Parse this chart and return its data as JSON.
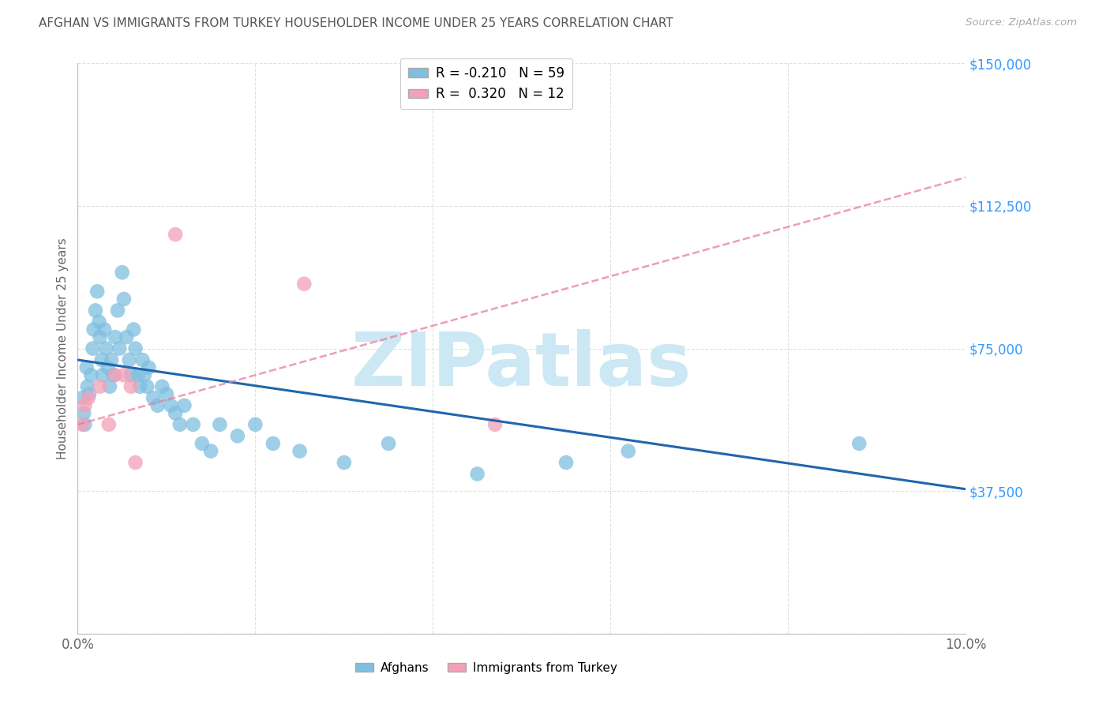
{
  "title": "AFGHAN VS IMMIGRANTS FROM TURKEY HOUSEHOLDER INCOME UNDER 25 YEARS CORRELATION CHART",
  "source": "Source: ZipAtlas.com",
  "ylabel": "Householder Income Under 25 years",
  "xlim": [
    0.0,
    10.0
  ],
  "ylim": [
    0,
    150000
  ],
  "yticks": [
    0,
    37500,
    75000,
    112500,
    150000
  ],
  "ytick_labels": [
    "",
    "$37,500",
    "$75,000",
    "$112,500",
    "$150,000"
  ],
  "xtick_labels": [
    "0.0%",
    "",
    "",
    "",
    "",
    "10.0%"
  ],
  "afghan_R": -0.21,
  "afghan_N": 59,
  "turkey_R": 0.32,
  "turkey_N": 12,
  "afghan_color": "#7fbfe0",
  "turkey_color": "#f4a0b8",
  "afghan_line_color": "#2166ac",
  "turkey_line_color": "#e87ca0",
  "title_color": "#555555",
  "ytick_color": "#3399ff",
  "xtick_color": "#666666",
  "watermark_color": "#cce8f4",
  "background_color": "#ffffff",
  "grid_color": "#dddddd",
  "afghans_x": [
    0.05,
    0.07,
    0.08,
    0.1,
    0.11,
    0.13,
    0.15,
    0.17,
    0.18,
    0.2,
    0.22,
    0.24,
    0.25,
    0.27,
    0.28,
    0.3,
    0.32,
    0.34,
    0.36,
    0.38,
    0.4,
    0.42,
    0.45,
    0.47,
    0.5,
    0.52,
    0.55,
    0.58,
    0.6,
    0.63,
    0.65,
    0.68,
    0.7,
    0.73,
    0.75,
    0.78,
    0.8,
    0.85,
    0.9,
    0.95,
    1.0,
    1.05,
    1.1,
    1.15,
    1.2,
    1.3,
    1.4,
    1.5,
    1.6,
    1.8,
    2.0,
    2.2,
    2.5,
    3.0,
    3.5,
    4.5,
    5.5,
    6.2,
    8.8
  ],
  "afghans_y": [
    62000,
    58000,
    55000,
    70000,
    65000,
    63000,
    68000,
    75000,
    80000,
    85000,
    90000,
    82000,
    78000,
    72000,
    68000,
    80000,
    75000,
    70000,
    65000,
    72000,
    68000,
    78000,
    85000,
    75000,
    95000,
    88000,
    78000,
    72000,
    68000,
    80000,
    75000,
    68000,
    65000,
    72000,
    68000,
    65000,
    70000,
    62000,
    60000,
    65000,
    63000,
    60000,
    58000,
    55000,
    60000,
    55000,
    50000,
    48000,
    55000,
    52000,
    55000,
    50000,
    48000,
    45000,
    50000,
    42000,
    45000,
    48000,
    50000
  ],
  "turkey_x": [
    0.05,
    0.08,
    0.12,
    0.25,
    0.35,
    0.42,
    0.52,
    0.6,
    0.65,
    1.1,
    2.55,
    4.7
  ],
  "turkey_y": [
    55000,
    60000,
    62000,
    65000,
    55000,
    68000,
    68000,
    65000,
    45000,
    105000,
    92000,
    55000
  ],
  "afghan_line_x0": 0.0,
  "afghan_line_y0": 72000,
  "afghan_line_x1": 10.0,
  "afghan_line_y1": 38000,
  "turkey_line_x0": 0.0,
  "turkey_line_y0": 55000,
  "turkey_line_x1": 10.0,
  "turkey_line_y1": 120000
}
